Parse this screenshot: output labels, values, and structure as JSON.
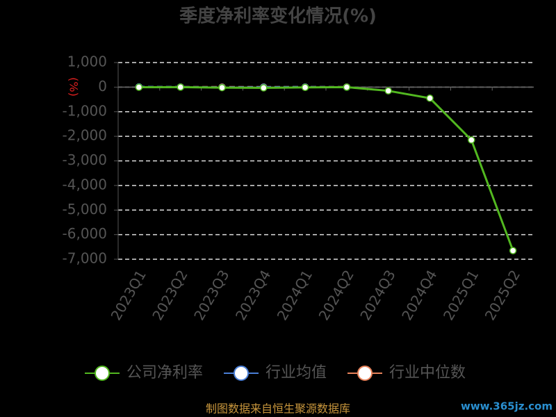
{
  "chart_data": {
    "type": "line",
    "title": "季度净利率变化情况(%)",
    "y_label": "(%)",
    "categories": [
      "2023Q1",
      "2023Q2",
      "2023Q3",
      "2023Q4",
      "2024Q1",
      "2024Q2",
      "2024Q3",
      "2024Q4",
      "2025Q1",
      "2025Q2"
    ],
    "series": [
      {
        "name": "公司净利率",
        "color": "#52b820",
        "dashed": false,
        "values": [
          -5,
          0,
          -20,
          -30,
          -10,
          0,
          -150,
          -450,
          -2150,
          -6650
        ]
      },
      {
        "name": "行业均值",
        "color": "#4a7fd6",
        "dashed": true,
        "values": [
          10,
          5,
          -10,
          -5,
          5,
          0,
          null,
          null,
          null,
          null
        ]
      },
      {
        "name": "行业中位数",
        "color": "#e8825a",
        "dashed": true,
        "values": [
          5,
          5,
          5,
          5,
          5,
          5,
          null,
          null,
          null,
          null
        ]
      }
    ],
    "ylim": [
      -7000,
      1000
    ],
    "yticks": [
      {
        "value": -7000,
        "label": "-7,000"
      },
      {
        "value": -6000,
        "label": "-6,000"
      },
      {
        "value": -5000,
        "label": "-5,000"
      },
      {
        "value": -4000,
        "label": "-4,000"
      },
      {
        "value": -3000,
        "label": "-3,000"
      },
      {
        "value": -2000,
        "label": "-2,000"
      },
      {
        "value": -1000,
        "label": "-1,000"
      },
      0,
      {
        "value": 1000,
        "label": "1,000"
      }
    ],
    "grid": true,
    "source": "制图数据来自恒生聚源数据库",
    "watermark": "www.365jz.com"
  }
}
